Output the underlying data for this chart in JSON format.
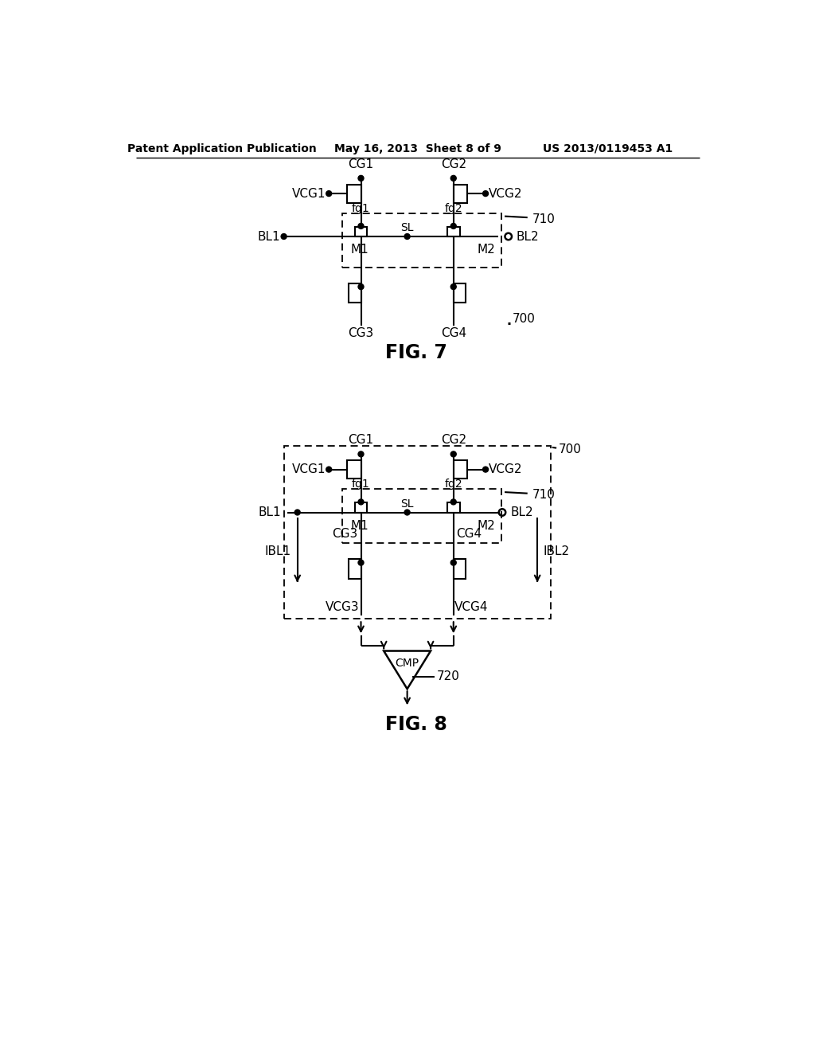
{
  "header_left": "Patent Application Publication",
  "header_mid": "May 16, 2013  Sheet 8 of 9",
  "header_right": "US 2013/0119453 A1",
  "bg_color": "#ffffff"
}
